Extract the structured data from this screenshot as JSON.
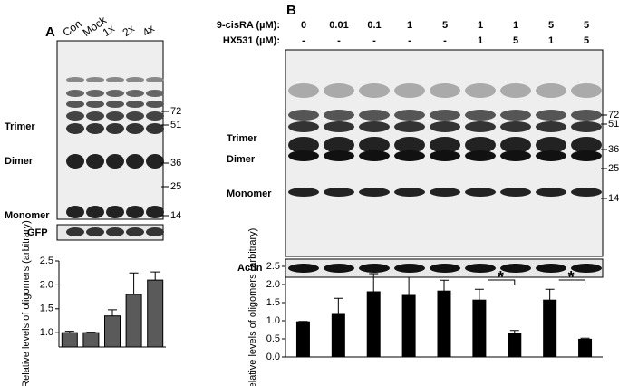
{
  "panels": {
    "a": "A",
    "b": "B"
  },
  "blot_a": {
    "lanes": [
      "Con",
      "Mock",
      "1x",
      "2x",
      "4x"
    ],
    "bands": [
      "Trimer",
      "Dimer",
      "Monomer"
    ],
    "loading": "GFP",
    "markers": [
      "72",
      "51",
      "36",
      "25",
      "14"
    ]
  },
  "blot_b": {
    "rows": [
      {
        "label": "9-cisRA (µM):",
        "lanes": [
          "0",
          "0.01",
          "0.1",
          "1",
          "5",
          "1",
          "1",
          "5",
          "5"
        ]
      },
      {
        "label": "HX531 (µM):",
        "lanes": [
          "-",
          "-",
          "-",
          "-",
          "-",
          "1",
          "5",
          "1",
          "5"
        ]
      }
    ],
    "bands": [
      "Trimer",
      "Dimer",
      "Monomer"
    ],
    "loading": "Actin",
    "markers": [
      "72",
      "51",
      "36",
      "25",
      "14"
    ]
  },
  "chart_data": [
    {
      "type": "bar",
      "ylabel": "Relative levels of oligomers (arbitrary)",
      "color": "#5a5a5a",
      "values": [
        1.0,
        1.0,
        1.35,
        1.8,
        2.1
      ],
      "errors": [
        0.03,
        0.01,
        0.13,
        0.45,
        0.17
      ],
      "ylim": [
        0.7,
        2.5
      ],
      "yticks": [
        {
          "value": 1,
          "label": "1.0"
        },
        {
          "value": 1.5,
          "label": "1.5"
        },
        {
          "value": 2,
          "label": "2.0"
        },
        {
          "value": 2.5,
          "label": "2.5"
        }
      ]
    },
    {
      "type": "bar",
      "ylabel": "Relative levels of oligomers (arbitrary)",
      "color": "#000000",
      "values": [
        0.97,
        1.2,
        1.8,
        1.7,
        1.82,
        1.57,
        0.65,
        1.57,
        0.49
      ],
      "errors": [
        0.01,
        0.42,
        0.5,
        0.5,
        0.3,
        0.3,
        0.08,
        0.3,
        0.03
      ],
      "ylim": [
        0,
        2.5
      ],
      "yticks": [
        {
          "value": 0,
          "label": "0.0"
        },
        {
          "value": 0.5,
          "label": "0.5"
        },
        {
          "value": 1,
          "label": "1.0"
        },
        {
          "value": 1.5,
          "label": "1.5"
        },
        {
          "value": 2,
          "label": "2.0"
        },
        {
          "value": 2.5,
          "label": "2.5"
        }
      ],
      "annotations": [
        "*",
        "*"
      ]
    }
  ]
}
